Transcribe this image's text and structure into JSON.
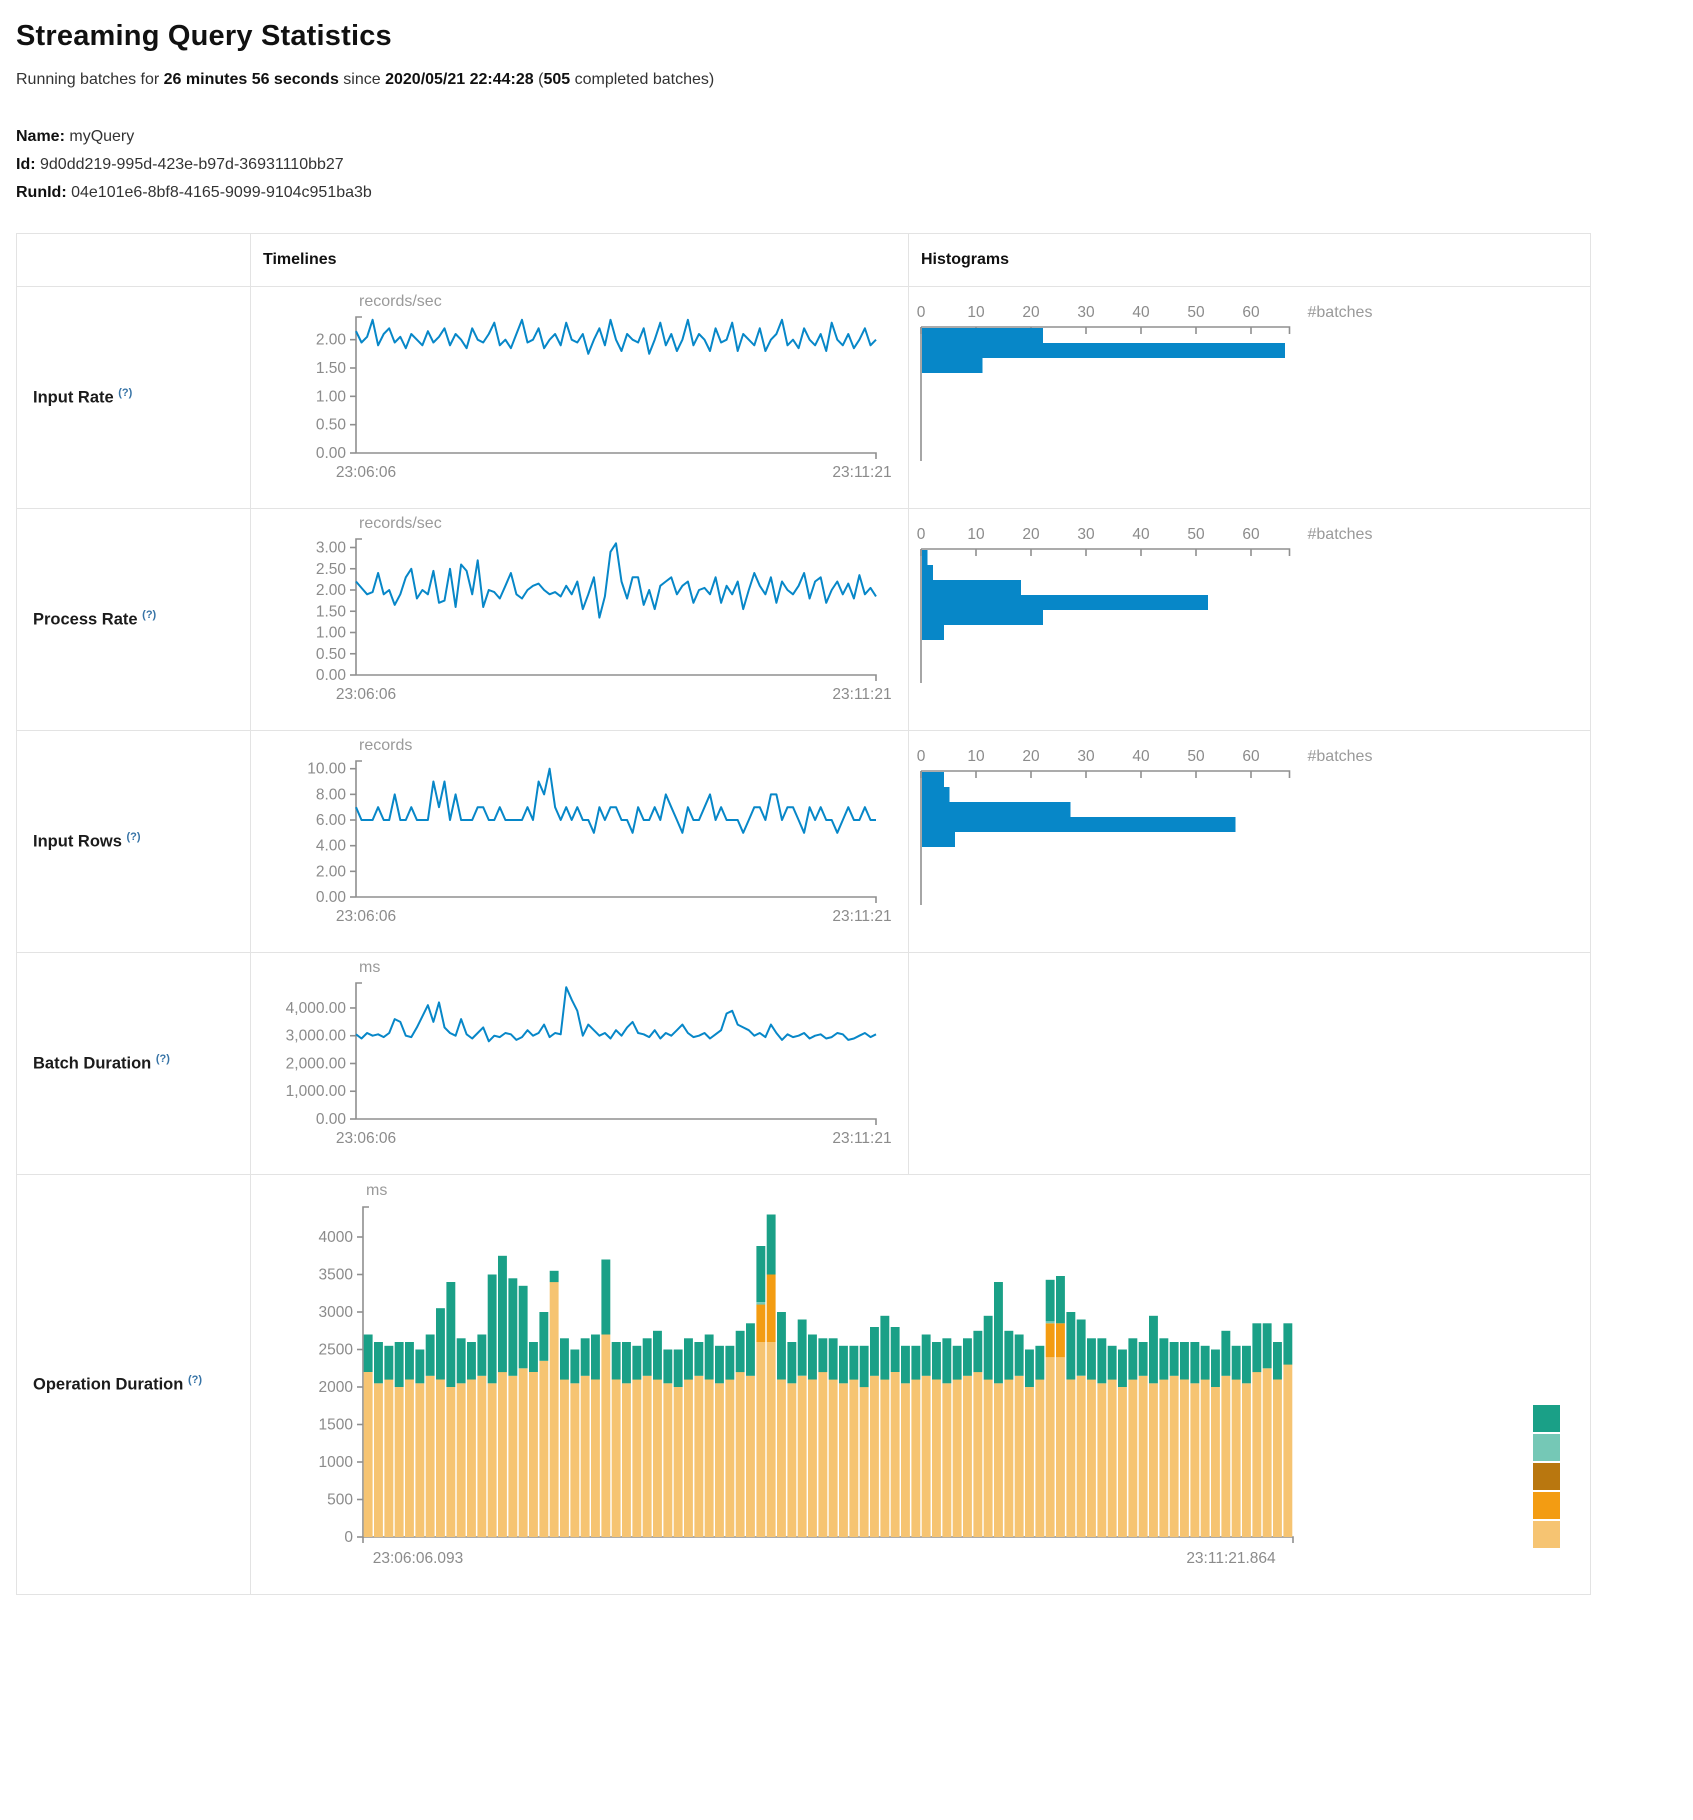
{
  "page": {
    "title": "Streaming Query Statistics",
    "subtitle": {
      "prefix": "Running batches for ",
      "duration": "26 minutes 56 seconds",
      "middle": " since ",
      "since": "2020/05/21 22:44:28",
      "open_paren": " (",
      "batches": "505",
      "suffix": " completed batches)"
    },
    "meta": {
      "name_label": "Name:",
      "name": "myQuery",
      "id_label": "Id:",
      "id": "9d0dd219-995d-423e-b97d-36931110bb27",
      "runid_label": "RunId:",
      "runid": "04e101e6-8bf8-4165-9099-9104c951ba3b"
    }
  },
  "table": {
    "headers": {
      "timelines": "Timelines",
      "histograms": "Histograms"
    }
  },
  "colors": {
    "line": "#0787C8",
    "bar": "#0787C8",
    "axis": "#8f8f8f",
    "help": "#3673A6"
  },
  "chart_data": [
    {
      "label": "Input Rate",
      "help": "(?)",
      "timeline": {
        "type": "line",
        "title": "Input Rate timeline",
        "unit": "records/sec",
        "x_start": "23:06:06",
        "x_end": "23:11:21",
        "y_ticks": [
          0,
          0.5,
          1,
          1.5,
          2
        ],
        "y_max": 2.4,
        "format": "dec2",
        "values": [
          2.15,
          1.95,
          2.05,
          2.35,
          1.9,
          2.1,
          2.2,
          1.95,
          2.05,
          1.85,
          2.1,
          2.0,
          1.9,
          2.15,
          1.95,
          2.05,
          2.2,
          1.9,
          2.1,
          2.0,
          1.85,
          2.2,
          2.0,
          1.95,
          2.1,
          2.3,
          1.9,
          2.0,
          1.85,
          2.1,
          2.35,
          1.95,
          2.0,
          2.2,
          1.85,
          2.0,
          2.1,
          1.9,
          2.3,
          2.0,
          1.95,
          2.1,
          1.75,
          2.0,
          2.2,
          1.9,
          2.35,
          2.0,
          1.8,
          2.1,
          2.0,
          1.95,
          2.2,
          1.75,
          2.0,
          2.3,
          1.9,
          2.1,
          1.8,
          2.0,
          2.35,
          1.9,
          2.1,
          2.0,
          1.8,
          2.2,
          1.95,
          2.0,
          2.3,
          1.8,
          2.1,
          2.0,
          1.9,
          2.2,
          1.8,
          2.0,
          2.1,
          2.35,
          1.9,
          2.0,
          1.85,
          2.2,
          2.0,
          1.9,
          2.1,
          1.8,
          2.3,
          2.0,
          1.9,
          2.1,
          1.85,
          2.0,
          2.2,
          1.9,
          2.0
        ]
      },
      "histogram": {
        "type": "hbar",
        "title": "Input Rate histogram",
        "unit": "#batches",
        "x_ticks": [
          0,
          10,
          20,
          30,
          40,
          50,
          60
        ],
        "x_max": 67,
        "values": [
          22,
          66,
          11
        ]
      }
    },
    {
      "label": "Process Rate",
      "help": "(?)",
      "timeline": {
        "type": "line",
        "title": "Process Rate timeline",
        "unit": "records/sec",
        "x_start": "23:06:06",
        "x_end": "23:11:21",
        "y_ticks": [
          0,
          0.5,
          1,
          1.5,
          2,
          2.5,
          3
        ],
        "y_max": 3.2,
        "format": "dec2",
        "values": [
          2.2,
          2.05,
          1.9,
          1.95,
          2.4,
          1.9,
          2.0,
          1.65,
          1.9,
          2.3,
          2.5,
          1.8,
          2.0,
          1.9,
          2.45,
          1.7,
          1.75,
          2.5,
          1.6,
          2.6,
          2.45,
          1.9,
          2.7,
          1.6,
          2.0,
          1.95,
          1.8,
          2.1,
          2.4,
          1.9,
          1.8,
          2.0,
          2.1,
          2.15,
          2.0,
          1.9,
          1.95,
          1.85,
          2.1,
          1.9,
          2.2,
          1.55,
          1.9,
          2.3,
          1.35,
          1.85,
          2.9,
          3.1,
          2.2,
          1.8,
          2.3,
          2.3,
          1.65,
          2.0,
          1.55,
          2.1,
          2.2,
          2.3,
          1.9,
          2.1,
          2.2,
          1.7,
          2.0,
          2.05,
          1.9,
          2.3,
          1.7,
          2.1,
          1.9,
          2.2,
          1.55,
          2.0,
          2.4,
          2.1,
          1.9,
          2.3,
          1.7,
          2.2,
          2.0,
          1.9,
          2.1,
          2.4,
          1.8,
          2.2,
          2.3,
          1.7,
          2.0,
          2.2,
          1.9,
          2.15,
          1.8,
          2.35,
          1.9,
          2.05,
          1.85
        ]
      },
      "histogram": {
        "type": "hbar",
        "title": "Process Rate histogram",
        "unit": "#batches",
        "x_ticks": [
          0,
          10,
          20,
          30,
          40,
          50,
          60
        ],
        "x_max": 67,
        "values": [
          1,
          2,
          18,
          52,
          22,
          4
        ]
      }
    },
    {
      "label": "Input Rows",
      "help": "(?)",
      "timeline": {
        "type": "line",
        "title": "Input Rows timeline",
        "unit": "records",
        "x_start": "23:06:06",
        "x_end": "23:11:21",
        "y_ticks": [
          0,
          2,
          4,
          6,
          8,
          10
        ],
        "y_max": 10.6,
        "format": "dec2",
        "values": [
          7,
          6,
          6,
          6,
          7,
          6,
          6,
          8,
          6,
          6,
          7,
          6,
          6,
          6,
          9,
          7,
          9,
          6,
          8,
          6,
          6,
          6,
          7,
          7,
          6,
          6,
          7,
          6,
          6,
          6,
          6,
          7,
          6,
          9,
          8,
          10,
          7,
          6,
          7,
          6,
          7,
          6,
          6,
          5,
          7,
          6,
          7,
          7,
          6,
          6,
          5,
          7,
          6,
          6,
          7,
          6,
          8,
          7,
          6,
          5,
          7,
          6,
          6,
          7,
          8,
          6,
          7,
          6,
          6,
          6,
          5,
          6,
          7,
          7,
          6,
          8,
          8,
          6,
          7,
          7,
          6,
          5,
          7,
          6,
          7,
          6,
          6,
          5,
          6,
          7,
          6,
          6,
          7,
          6,
          6
        ]
      },
      "histogram": {
        "type": "hbar",
        "title": "Input Rows histogram",
        "unit": "#batches",
        "x_ticks": [
          0,
          10,
          20,
          30,
          40,
          50,
          60
        ],
        "x_max": 67,
        "values": [
          4,
          5,
          27,
          57,
          6
        ]
      }
    },
    {
      "label": "Batch Duration",
      "help": "(?)",
      "timeline": {
        "type": "line",
        "title": "Batch Duration timeline",
        "unit": "ms",
        "x_start": "23:06:06",
        "x_end": "23:11:21",
        "y_ticks": [
          0,
          1000,
          2000,
          3000,
          4000
        ],
        "y_max": 4900,
        "format": "dec2",
        "values": [
          3050,
          2900,
          3100,
          3000,
          3050,
          2950,
          3100,
          3600,
          3500,
          3000,
          2950,
          3300,
          3700,
          4100,
          3500,
          4200,
          3300,
          3100,
          3000,
          3600,
          3050,
          2900,
          3100,
          3300,
          2800,
          3000,
          2950,
          3100,
          3050,
          2850,
          2950,
          3200,
          3000,
          3100,
          3400,
          2950,
          3100,
          3050,
          4750,
          4300,
          3900,
          3000,
          3400,
          3200,
          3000,
          3100,
          2900,
          3200,
          3000,
          3300,
          3500,
          3100,
          3050,
          2950,
          3200,
          2900,
          3100,
          3000,
          3200,
          3400,
          3100,
          2950,
          3000,
          3100,
          2900,
          3050,
          3200,
          3800,
          3900,
          3400,
          3300,
          3200,
          3000,
          3100,
          2950,
          3400,
          3100,
          2850,
          3050,
          2950,
          3000,
          3100,
          2900,
          3000,
          3050,
          2900,
          2950,
          3100,
          3050,
          2850,
          2900,
          3000,
          3100,
          2950,
          3050
        ]
      }
    },
    {
      "label": "Operation Duration",
      "help": "(?)",
      "timeline": {
        "type": "stacked",
        "title": "Operation Duration stacked bars",
        "unit": "ms",
        "x_start": "23:06:06.093",
        "x_end": "23:11:21.864",
        "y_ticks": [
          0,
          500,
          1000,
          1500,
          2000,
          2500,
          3000,
          3500,
          4000
        ],
        "y_max": 4400,
        "format": "int",
        "legend_colors": [
          "#1AA087",
          "#75C8B6",
          "#B9770F",
          "#F39C12",
          "#F6C472"
        ],
        "series": [
          {
            "name": "tan-base",
            "color": "#F6C472",
            "values": [
              2200,
              2050,
              2100,
              2000,
              2100,
              2050,
              2150,
              2100,
              2000,
              2050,
              2100,
              2150,
              2050,
              2200,
              2150,
              2250,
              2200,
              2350,
              3400,
              2100,
              2050,
              2150,
              2100,
              2700,
              2100,
              2050,
              2100,
              2150,
              2100,
              2050,
              2000,
              2100,
              2150,
              2100,
              2050,
              2100,
              2200,
              2150,
              2600,
              2600,
              2100,
              2050,
              2150,
              2100,
              2200,
              2100,
              2050,
              2100,
              2000,
              2150,
              2100,
              2200,
              2050,
              2100,
              2150,
              2100,
              2050,
              2100,
              2150,
              2200,
              2100,
              2050,
              2100,
              2150,
              2000,
              2100,
              2400,
              2400,
              2100,
              2150,
              2100,
              2050,
              2100,
              2000,
              2100,
              2150,
              2050,
              2100,
              2150,
              2100,
              2050,
              2100,
              2000,
              2150,
              2100,
              2050,
              2200,
              2250,
              2100,
              2300
            ]
          },
          {
            "name": "orange-segment",
            "color": "#F39C12",
            "values_sparse": {
              "38": 500,
              "39": 900,
              "66": 450,
              "67": 450
            }
          },
          {
            "name": "brown-segment",
            "color": "#B9770F",
            "values_sparse": {}
          },
          {
            "name": "light-teal-segment",
            "color": "#75C8B6",
            "values_sparse": {
              "38": 30,
              "66": 30
            }
          },
          {
            "name": "teal-top",
            "color": "#1AA087",
            "values": [
              500,
              550,
              450,
              600,
              500,
              450,
              550,
              950,
              1400,
              600,
              500,
              550,
              1450,
              1550,
              1300,
              1100,
              400,
              650,
              150,
              550,
              450,
              500,
              600,
              1000,
              500,
              550,
              450,
              500,
              650,
              450,
              500,
              550,
              450,
              600,
              500,
              450,
              550,
              700,
              750,
              800,
              900,
              550,
              750,
              600,
              450,
              550,
              500,
              450,
              550,
              650,
              850,
              600,
              500,
              450,
              550,
              500,
              600,
              450,
              500,
              550,
              850,
              1350,
              650,
              550,
              500,
              450,
              550,
              630,
              900,
              750,
              550,
              600,
              450,
              500,
              550,
              450,
              900,
              550,
              450,
              500,
              550,
              450,
              500,
              600,
              450,
              500,
              650,
              600,
              500,
              550
            ]
          }
        ]
      }
    }
  ]
}
